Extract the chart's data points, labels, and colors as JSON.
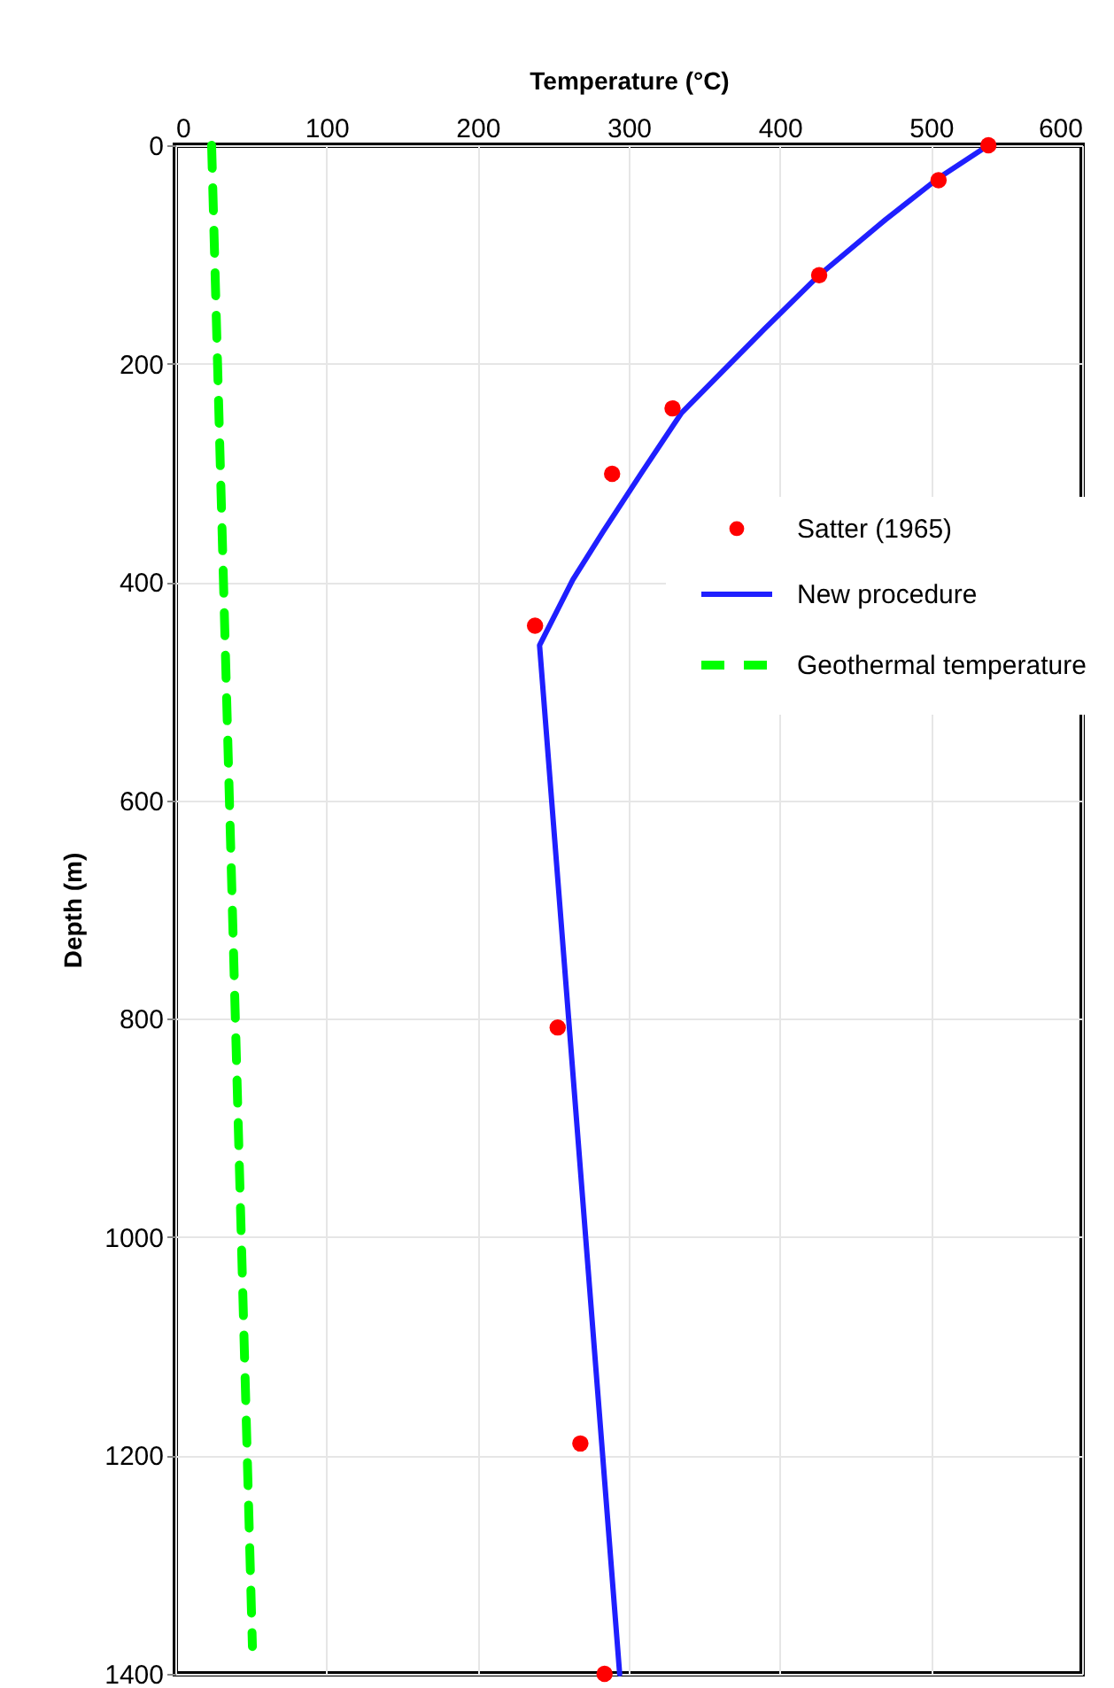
{
  "chart_data": {
    "type": "line",
    "xlabel": "Temperature (°C)",
    "ylabel": "Depth (m)",
    "xlim": [
      0,
      600
    ],
    "xticks": [
      0,
      100,
      200,
      300,
      400,
      500,
      600
    ],
    "ylim": [
      1400,
      0
    ],
    "yticks": [
      0,
      200,
      400,
      600,
      800,
      1000,
      1200,
      1400
    ],
    "grid": true,
    "legend": "right",
    "series": [
      {
        "name": "Satter (1965)",
        "type": "scatter",
        "marker": "circle",
        "color": "#ff0000",
        "x": [
          538,
          505,
          426,
          329,
          289,
          238,
          253,
          268,
          284
        ],
        "values": [
          0,
          32,
          119,
          241,
          301,
          440,
          808,
          1189,
          1400
        ]
      },
      {
        "name": "New procedure",
        "line_style": "solid",
        "color": "#1f1fff",
        "x": [
          538,
          505,
          470,
          426,
          390,
          360,
          335,
          308,
          283,
          263,
          241,
          294
        ],
        "values": [
          0,
          30,
          68,
          119,
          168,
          210,
          245,
          301,
          354,
          398,
          458,
          1400
        ]
      },
      {
        "name": "Geothermal temperature",
        "line_style": "dashed",
        "color": "#00ff00",
        "x": [
          24,
          51
        ],
        "values": [
          0,
          1375
        ]
      }
    ]
  }
}
